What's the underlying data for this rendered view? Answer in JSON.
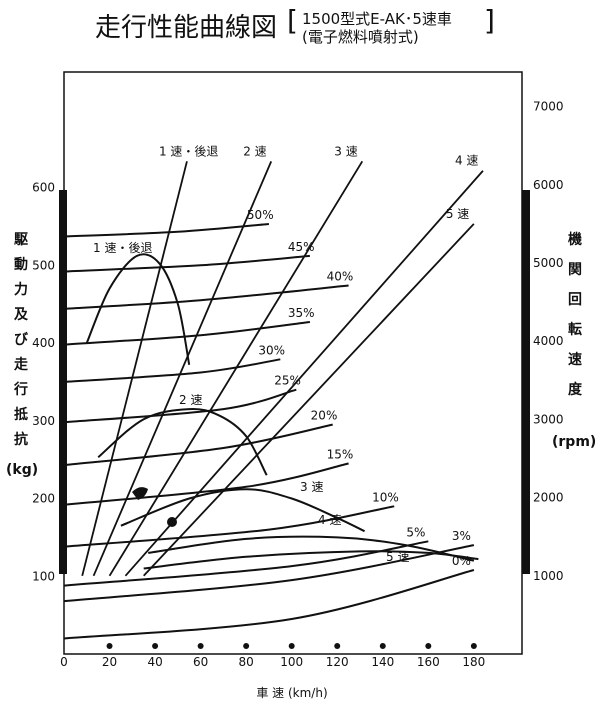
{
  "title": {
    "main": "走行性能曲線図",
    "sub1": "1500型式E-AK･5速車",
    "sub2": "(電子燃料噴射式)"
  },
  "chart_data": {
    "type": "line",
    "xlabel": "車 速 (km/h)",
    "ylabel_left": [
      "駆",
      "動",
      "力",
      "及",
      "び",
      "走",
      "行",
      "抵",
      "抗",
      "(kg)"
    ],
    "ylabel_right": [
      "機",
      "関",
      "回",
      "転",
      "速",
      "度",
      "(rpm)"
    ],
    "xlim": [
      0,
      200
    ],
    "ylim_left": [
      0,
      700
    ],
    "ylim_right": [
      0,
      7000
    ],
    "x_ticks": [
      "0",
      "20",
      "40",
      "60",
      "80",
      "100",
      "120",
      "140",
      "160",
      "180"
    ],
    "y_ticks_left": [
      "100",
      "200",
      "300",
      "400",
      "500",
      "600"
    ],
    "y_ticks_right": [
      "1000",
      "2000",
      "3000",
      "4000",
      "5000",
      "6000",
      "7000"
    ],
    "grid": false,
    "gear_rpm_lines": [
      {
        "name": "1 速・後退",
        "points": [
          [
            8,
            1000
          ],
          [
            54,
            6300
          ]
        ]
      },
      {
        "name": "2 速",
        "points": [
          [
            13,
            1000
          ],
          [
            91,
            6300
          ]
        ]
      },
      {
        "name": "3 速",
        "points": [
          [
            20,
            1000
          ],
          [
            131,
            6300
          ]
        ]
      },
      {
        "name": "4 速",
        "points": [
          [
            27,
            1000
          ],
          [
            184,
            6180
          ]
        ]
      },
      {
        "name": "5 速",
        "points": [
          [
            35,
            1000
          ],
          [
            180,
            5500
          ]
        ]
      }
    ],
    "gear_drive_force": [
      {
        "name": "1 速・後退",
        "points": [
          [
            10,
            400
          ],
          [
            20,
            470
          ],
          [
            32,
            512
          ],
          [
            42,
            502
          ],
          [
            50,
            450
          ],
          [
            55,
            372
          ]
        ]
      },
      {
        "name": "2 速",
        "points": [
          [
            15,
            253
          ],
          [
            35,
            302
          ],
          [
            55,
            315
          ],
          [
            68,
            307
          ],
          [
            80,
            280
          ],
          [
            89,
            230
          ]
        ]
      },
      {
        "name": "3 速",
        "points": [
          [
            25,
            165
          ],
          [
            55,
            200
          ],
          [
            80,
            212
          ],
          [
            100,
            200
          ],
          [
            120,
            175
          ],
          [
            132,
            158
          ]
        ]
      },
      {
        "name": "4 速",
        "points": [
          [
            37,
            130
          ],
          [
            80,
            148
          ],
          [
            120,
            150
          ],
          [
            150,
            140
          ],
          [
            180,
            120
          ]
        ]
      },
      {
        "name": "5 速",
        "points": [
          [
            35,
            110
          ],
          [
            80,
            125
          ],
          [
            130,
            132
          ],
          [
            160,
            130
          ],
          [
            182,
            122
          ]
        ]
      }
    ],
    "resistance_curves": [
      {
        "name": "50%",
        "points": [
          [
            0,
            537
          ],
          [
            50,
            543
          ],
          [
            90,
            553
          ]
        ]
      },
      {
        "name": "45%",
        "points": [
          [
            0,
            492
          ],
          [
            60,
            500
          ],
          [
            108,
            512
          ]
        ]
      },
      {
        "name": "40%",
        "points": [
          [
            0,
            444
          ],
          [
            60,
            455
          ],
          [
            125,
            474
          ]
        ]
      },
      {
        "name": "35%",
        "points": [
          [
            0,
            398
          ],
          [
            60,
            410
          ],
          [
            108,
            427
          ]
        ]
      },
      {
        "name": "30%",
        "points": [
          [
            0,
            350
          ],
          [
            60,
            362
          ],
          [
            95,
            379
          ]
        ]
      },
      {
        "name": "25%",
        "points": [
          [
            0,
            298
          ],
          [
            70,
            315
          ],
          [
            102,
            340
          ]
        ]
      },
      {
        "name": "20%",
        "points": [
          [
            0,
            243
          ],
          [
            70,
            265
          ],
          [
            118,
            295
          ]
        ]
      },
      {
        "name": "15%",
        "points": [
          [
            0,
            192
          ],
          [
            80,
            215
          ],
          [
            125,
            245
          ]
        ]
      },
      {
        "name": "10%",
        "points": [
          [
            0,
            138
          ],
          [
            90,
            160
          ],
          [
            145,
            190
          ]
        ]
      },
      {
        "name": "5%",
        "points": [
          [
            0,
            88
          ],
          [
            100,
            113
          ],
          [
            160,
            145
          ]
        ]
      },
      {
        "name": "3%",
        "points": [
          [
            0,
            68
          ],
          [
            100,
            95
          ],
          [
            180,
            140
          ]
        ]
      },
      {
        "name": "0%",
        "points": [
          [
            0,
            20
          ],
          [
            100,
            45
          ],
          [
            180,
            108
          ]
        ]
      }
    ],
    "curve_labels": {
      "g1": "1 速・後退",
      "g2": "2 速",
      "g3": "3 速",
      "g4": "4 速",
      "g5": "5 速"
    }
  }
}
